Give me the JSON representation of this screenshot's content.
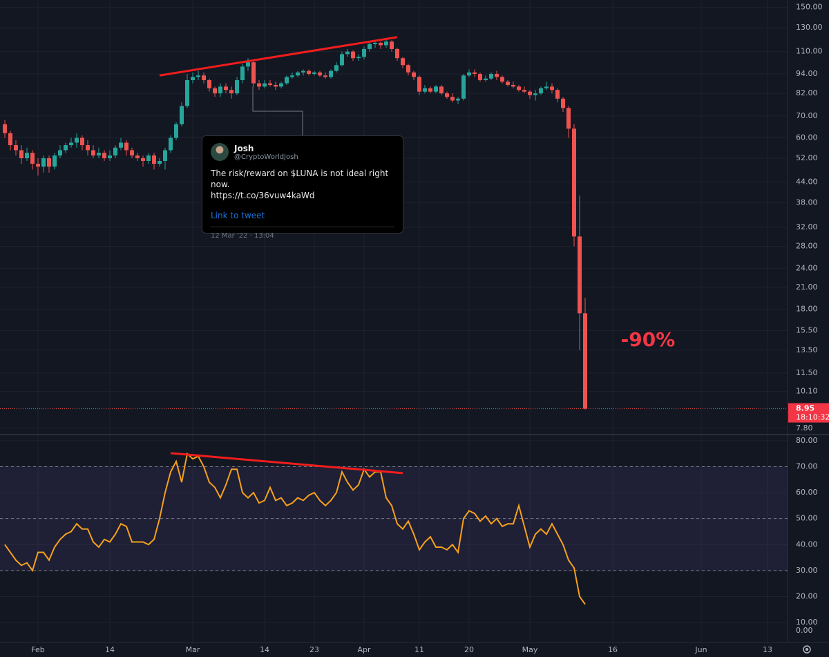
{
  "chart_data": {
    "type": "candlestick",
    "log_scale": true,
    "up_color": "#26a69a",
    "down_color": "#ef5350",
    "dates": [
      "Jan 26",
      "Jan 27",
      "Jan 28",
      "Jan 29",
      "Jan 30",
      "Jan 31",
      "Feb 1",
      "Feb 2",
      "Feb 3",
      "Feb 4",
      "Feb 5",
      "Feb 6",
      "Feb 7",
      "Feb 8",
      "Feb 9",
      "Feb 10",
      "Feb 11",
      "Feb 12",
      "Feb 13",
      "Feb 14",
      "Feb 15",
      "Feb 16",
      "Feb 17",
      "Feb 18",
      "Feb 19",
      "Feb 20",
      "Feb 21",
      "Feb 22",
      "Feb 23",
      "Feb 24",
      "Feb 25",
      "Feb 26",
      "Feb 27",
      "Feb 28",
      "Mar 1",
      "Mar 2",
      "Mar 3",
      "Mar 4",
      "Mar 5",
      "Mar 6",
      "Mar 7",
      "Mar 8",
      "Mar 9",
      "Mar 10",
      "Mar 11",
      "Mar 12",
      "Mar 13",
      "Mar 14",
      "Mar 15",
      "Mar 16",
      "Mar 17",
      "Mar 18",
      "Mar 19",
      "Mar 20",
      "Mar 21",
      "Mar 22",
      "Mar 23",
      "Mar 24",
      "Mar 25",
      "Mar 26",
      "Mar 27",
      "Mar 28",
      "Mar 29",
      "Mar 30",
      "Mar 31",
      "Apr 1",
      "Apr 2",
      "Apr 3",
      "Apr 4",
      "Apr 5",
      "Apr 6",
      "Apr 7",
      "Apr 8",
      "Apr 9",
      "Apr 10",
      "Apr 11",
      "Apr 12",
      "Apr 13",
      "Apr 14",
      "Apr 15",
      "Apr 16",
      "Apr 17",
      "Apr 18",
      "Apr 19",
      "Apr 20",
      "Apr 21",
      "Apr 22",
      "Apr 23",
      "Apr 24",
      "Apr 25",
      "Apr 26",
      "Apr 27",
      "Apr 28",
      "Apr 29",
      "Apr 30",
      "May 1",
      "May 2",
      "May 3",
      "May 4",
      "May 5",
      "May 6",
      "May 7",
      "May 8",
      "May 9",
      "May 10",
      "May 11"
    ],
    "open": [
      66,
      62,
      57,
      55,
      52,
      54,
      50,
      49,
      52,
      49,
      53,
      55,
      57,
      58,
      60,
      57,
      55,
      53,
      54,
      52,
      53,
      56,
      58,
      55,
      53,
      52,
      51,
      53,
      50,
      51,
      55,
      60,
      66,
      75,
      90,
      92,
      93,
      90,
      85,
      82,
      86,
      84,
      82,
      90,
      99,
      102,
      88,
      86,
      88,
      87,
      86,
      88,
      92,
      93,
      95,
      96,
      94,
      95,
      93,
      92,
      96,
      100,
      108,
      110,
      105,
      106,
      112,
      116,
      117,
      115,
      118,
      112,
      105,
      100,
      95,
      92,
      83,
      85,
      83,
      86,
      82,
      80,
      78,
      79,
      93,
      95,
      94,
      90,
      91,
      94,
      92,
      89,
      87,
      86,
      84,
      83,
      81,
      82,
      85,
      86,
      84,
      79,
      74,
      64,
      30,
      17.5
    ],
    "high": [
      68,
      63,
      59,
      57,
      56,
      55,
      52,
      53,
      53,
      54,
      57,
      58,
      60,
      62,
      61,
      59,
      57,
      56,
      55,
      55,
      57,
      60,
      59,
      56,
      54,
      53,
      54,
      54,
      52,
      56,
      61,
      67,
      77,
      94,
      95,
      96,
      95,
      91,
      86,
      88,
      88,
      86,
      92,
      101,
      105,
      103,
      90,
      90,
      90,
      89,
      89,
      93,
      95,
      96,
      97,
      97,
      96,
      96,
      95,
      97,
      102,
      110,
      112,
      111,
      108,
      114,
      118,
      119,
      118,
      120,
      119,
      113,
      106,
      101,
      96,
      93,
      87,
      86,
      87,
      87,
      83,
      82,
      80,
      94,
      97,
      97,
      95,
      93,
      95,
      96,
      93,
      90,
      89,
      87,
      86,
      84,
      84,
      86,
      89,
      88,
      85,
      80,
      75,
      66,
      40,
      19.5
    ],
    "low": [
      60,
      55,
      53,
      50,
      51,
      48,
      46,
      47,
      47,
      48,
      52,
      54,
      56,
      56,
      55,
      53,
      52,
      52,
      51,
      51,
      52,
      55,
      53,
      52,
      51,
      49,
      50,
      48,
      49,
      48,
      54,
      59,
      65,
      74,
      88,
      90,
      88,
      83,
      80,
      80,
      82,
      79,
      81,
      88,
      96,
      86,
      84,
      85,
      86,
      84,
      85,
      87,
      91,
      92,
      93,
      93,
      93,
      92,
      91,
      91,
      95,
      99,
      106,
      103,
      103,
      104,
      110,
      113,
      112,
      113,
      110,
      103,
      98,
      93,
      90,
      81,
      82,
      82,
      82,
      81,
      79,
      77,
      76,
      78,
      92,
      92,
      89,
      89,
      90,
      90,
      88,
      86,
      85,
      83,
      82,
      79,
      78,
      81,
      84,
      82,
      77,
      72,
      60,
      28,
      13.5,
      8.9
    ],
    "close": [
      62,
      57,
      55,
      52,
      54,
      50,
      49,
      52,
      49,
      53,
      55,
      57,
      58,
      60,
      57,
      55,
      53,
      54,
      52,
      53,
      56,
      58,
      55,
      53,
      52,
      51,
      53,
      50,
      51,
      55,
      60,
      66,
      75,
      90,
      92,
      93,
      90,
      85,
      82,
      86,
      84,
      82,
      90,
      99,
      102,
      88,
      86,
      88,
      87,
      86,
      88,
      92,
      93,
      95,
      96,
      94,
      95,
      93,
      92,
      96,
      100,
      108,
      110,
      105,
      106,
      112,
      116,
      117,
      115,
      118,
      112,
      105,
      100,
      95,
      92,
      83,
      85,
      83,
      86,
      82,
      80,
      78,
      79,
      93,
      95,
      94,
      90,
      91,
      94,
      92,
      89,
      87,
      86,
      84,
      83,
      81,
      82,
      85,
      86,
      84,
      79,
      74,
      64,
      30,
      17.5,
      8.95
    ],
    "ylim": [
      7.5,
      158
    ],
    "yticks": [
      {
        "value": 150,
        "label": "150.00"
      },
      {
        "value": 130,
        "label": "130.00"
      },
      {
        "value": 110,
        "label": "110.00"
      },
      {
        "value": 94,
        "label": "94.00"
      },
      {
        "value": 82,
        "label": "82.00"
      },
      {
        "value": 70,
        "label": "70.00"
      },
      {
        "value": 60,
        "label": "60.00"
      },
      {
        "value": 52,
        "label": "52.00"
      },
      {
        "value": 44,
        "label": "44.00"
      },
      {
        "value": 38,
        "label": "38.00"
      },
      {
        "value": 32,
        "label": "32.00"
      },
      {
        "value": 28,
        "label": "28.00"
      },
      {
        "value": 24,
        "label": "24.00"
      },
      {
        "value": 21,
        "label": "21.00"
      },
      {
        "value": 18,
        "label": "18.00"
      },
      {
        "value": 15.5,
        "label": "15.50"
      },
      {
        "value": 13.5,
        "label": "13.50"
      },
      {
        "value": 11.5,
        "label": "11.50"
      },
      {
        "value": 10.1,
        "label": "10.10"
      },
      {
        "value": 7.8,
        "label": "7.80"
      }
    ],
    "xticks": [
      {
        "value": "Feb 1",
        "label": "Feb"
      },
      {
        "value": "Feb 14",
        "label": "14"
      },
      {
        "value": "Mar 1",
        "label": "Mar"
      },
      {
        "value": "Mar 14",
        "label": "14"
      },
      {
        "value": "Mar 23",
        "label": "23"
      },
      {
        "value": "Apr 1",
        "label": "Apr"
      },
      {
        "value": "Apr 11",
        "label": "11"
      },
      {
        "value": "Apr 20",
        "label": "20"
      },
      {
        "value": "May 1",
        "label": "May"
      },
      {
        "value": "May 16",
        "label": "16"
      },
      {
        "value": "Jun 1",
        "label": "Jun"
      },
      {
        "value": "Jun 13",
        "label": "13"
      }
    ],
    "grid": true,
    "countdown": "18:10:32",
    "annotation": "-90%",
    "trendline": {
      "x": [
        "Feb 23",
        "Apr 7"
      ],
      "values": [
        93,
        121.7
      ],
      "color": "#f21d1d"
    },
    "rsi": {
      "values": [
        40,
        37,
        34,
        32,
        33,
        30,
        37,
        37,
        34,
        39,
        42,
        44,
        45,
        48,
        46,
        46,
        41,
        39,
        42,
        41,
        44,
        48,
        47,
        41,
        41,
        41,
        40,
        42,
        50,
        60,
        68,
        72,
        64,
        75,
        73,
        74,
        70,
        64,
        62,
        58,
        63,
        69,
        69,
        60,
        58,
        60,
        56,
        57,
        62,
        57,
        58,
        55,
        56,
        58,
        57,
        59,
        60,
        57,
        55,
        57,
        60,
        68,
        64,
        61,
        63,
        69,
        66,
        68,
        68,
        58,
        55,
        48,
        46,
        49,
        44,
        38,
        41,
        43,
        39,
        39,
        38,
        40,
        37,
        50,
        53,
        52,
        49,
        51,
        48,
        50,
        47,
        48,
        48,
        55,
        47,
        39,
        44,
        46,
        44,
        48,
        44,
        40,
        34,
        31,
        20,
        17
      ],
      "color": "#f7a21b",
      "ylim": [
        2.3,
        82.1
      ],
      "yticks": [
        {
          "value": 80,
          "label": "80.00"
        },
        {
          "value": 70,
          "label": "70.00"
        },
        {
          "value": 60,
          "label": "60.00"
        },
        {
          "value": 50,
          "label": "50.00"
        },
        {
          "value": 40,
          "label": "40.00"
        },
        {
          "value": 30,
          "label": "30.00"
        },
        {
          "value": 20,
          "label": "20.00"
        },
        {
          "value": 10,
          "label": "10.00"
        }
      ],
      "band": [
        30,
        70
      ],
      "midline": 50,
      "trendline": {
        "x": [
          "Feb 25",
          "Apr 8"
        ],
        "values": [
          75.2,
          67.5
        ],
        "color": "#f21d1d"
      },
      "lower_label": "0.00"
    }
  },
  "tweet": {
    "name": "Josh",
    "handle": "@CryptoWorldJosh",
    "text": [
      "The risk/reward on $LUNA is not ideal right now.",
      "https://t.co/36vuw4kaWd"
    ],
    "link": "Link to tweet",
    "timestamp": "12 Mar '22 · 13:04"
  }
}
